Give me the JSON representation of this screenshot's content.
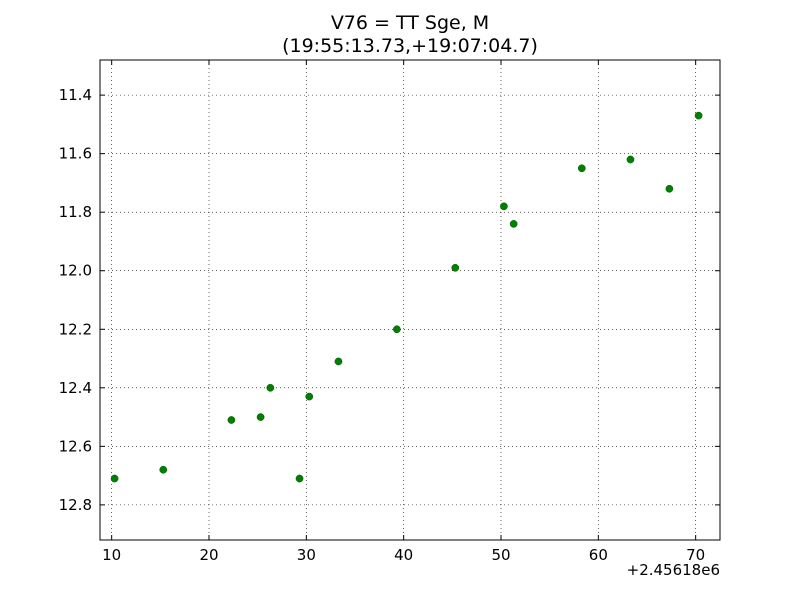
{
  "chart_data": {
    "type": "scatter",
    "title": "V76 = TT Sge, M",
    "subtitle": "(19:55:13.73,+19:07:04.7)",
    "xlabel": "",
    "ylabel": "",
    "x_offset_label": "+2.45618e6",
    "xlim": [
      8.8,
      72.5
    ],
    "ylim": [
      12.92,
      11.28
    ],
    "y_inverted": true,
    "grid": true,
    "marker_color": "#007f00",
    "x_ticks": [
      10,
      20,
      30,
      40,
      50,
      60,
      70
    ],
    "y_ticks": [
      11.4,
      11.6,
      11.8,
      12.0,
      12.2,
      12.4,
      12.6,
      12.8
    ],
    "x_tick_labels": [
      "10",
      "20",
      "30",
      "40",
      "50",
      "60",
      "70"
    ],
    "y_tick_labels": [
      "11.4",
      "11.6",
      "11.8",
      "12.0",
      "12.2",
      "12.4",
      "12.6",
      "12.8"
    ],
    "points": [
      {
        "x": 10.3,
        "y": 12.71
      },
      {
        "x": 15.3,
        "y": 12.68
      },
      {
        "x": 22.3,
        "y": 12.51
      },
      {
        "x": 25.3,
        "y": 12.5
      },
      {
        "x": 26.3,
        "y": 12.4
      },
      {
        "x": 29.3,
        "y": 12.71
      },
      {
        "x": 30.3,
        "y": 12.43
      },
      {
        "x": 33.3,
        "y": 12.31
      },
      {
        "x": 39.3,
        "y": 12.2
      },
      {
        "x": 45.3,
        "y": 11.99
      },
      {
        "x": 50.3,
        "y": 11.78
      },
      {
        "x": 51.3,
        "y": 11.84
      },
      {
        "x": 58.3,
        "y": 11.65
      },
      {
        "x": 63.3,
        "y": 11.62
      },
      {
        "x": 67.3,
        "y": 11.72
      },
      {
        "x": 70.3,
        "y": 11.47
      }
    ]
  }
}
